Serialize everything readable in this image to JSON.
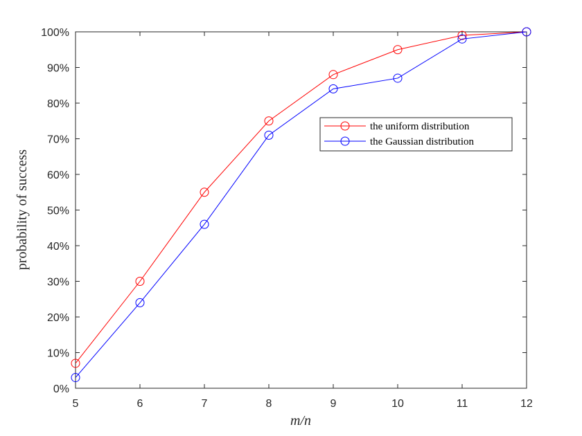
{
  "chart_data": {
    "type": "line",
    "xlabel": "m/n",
    "ylabel": "probability of success",
    "xlim": [
      5,
      12
    ],
    "ylim": [
      0,
      100
    ],
    "xticks": [
      5,
      6,
      7,
      8,
      9,
      10,
      11,
      12
    ],
    "yticks": [
      0,
      10,
      20,
      30,
      40,
      50,
      60,
      70,
      80,
      90,
      100
    ],
    "ytick_labels": [
      "0%",
      "10%",
      "20%",
      "30%",
      "40%",
      "50%",
      "60%",
      "70%",
      "80%",
      "90%",
      "100%"
    ],
    "x": [
      5,
      6,
      7,
      8,
      9,
      10,
      11,
      12
    ],
    "series": [
      {
        "name": "the uniform distribution",
        "color": "#ff0000",
        "marker": "circle",
        "values": [
          7,
          30,
          55,
          75,
          88,
          95,
          99,
          100
        ]
      },
      {
        "name": "the Gaussian distribution",
        "color": "#0000ff",
        "marker": "circle",
        "values": [
          3,
          24,
          46,
          71,
          84,
          87,
          98,
          100
        ]
      }
    ],
    "legend": "upper-right-inside",
    "grid": false
  }
}
